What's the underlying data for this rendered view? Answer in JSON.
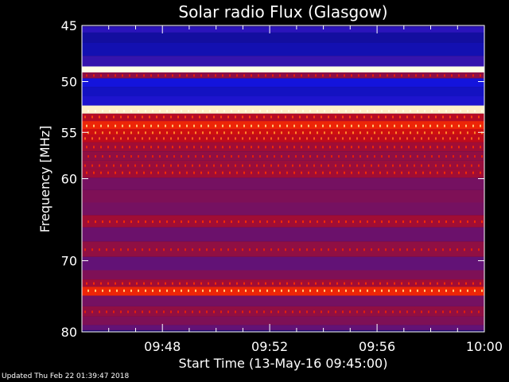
{
  "chart_data": {
    "type": "heatmap",
    "title": "Solar radio Flux (Glasgow)",
    "ylabel": "Frequency [MHz]",
    "xlabel": "Start Time (13-May-16 09:45:00)",
    "x_ticks": [
      "09:48",
      "09:52",
      "09:56",
      "10:00"
    ],
    "x_tick_minutes": [
      48,
      52,
      56,
      60
    ],
    "x_range_minutes": [
      45,
      60
    ],
    "y_ticks": [
      45,
      50,
      55,
      60,
      70,
      80
    ],
    "y_range_mhz": [
      45,
      80
    ],
    "y_scale": "log",
    "colormap": "blue-red-yellow-white",
    "bands": [
      {
        "freq": 45.2,
        "level": 0.22
      },
      {
        "freq": 46.0,
        "level": 0.08
      },
      {
        "freq": 47.0,
        "level": 0.1
      },
      {
        "freq": 48.3,
        "level": 0.25
      },
      {
        "freq": 48.9,
        "level": 1.0
      },
      {
        "freq": 49.4,
        "level": 0.45
      },
      {
        "freq": 50.0,
        "level": 0.15
      },
      {
        "freq": 51.0,
        "level": 0.12
      },
      {
        "freq": 51.8,
        "level": 0.18
      },
      {
        "freq": 52.8,
        "level": 0.98
      },
      {
        "freq": 53.4,
        "level": 0.55
      },
      {
        "freq": 54.3,
        "level": 0.7
      },
      {
        "freq": 55.0,
        "level": 0.62
      },
      {
        "freq": 55.6,
        "level": 0.58
      },
      {
        "freq": 56.5,
        "level": 0.5
      },
      {
        "freq": 57.5,
        "level": 0.46
      },
      {
        "freq": 58.5,
        "level": 0.48
      },
      {
        "freq": 59.3,
        "level": 0.5
      },
      {
        "freq": 60.5,
        "level": 0.4
      },
      {
        "freq": 62.0,
        "level": 0.42
      },
      {
        "freq": 63.5,
        "level": 0.4
      },
      {
        "freq": 65.0,
        "level": 0.5
      },
      {
        "freq": 66.5,
        "level": 0.38
      },
      {
        "freq": 68.5,
        "level": 0.46
      },
      {
        "freq": 70.5,
        "level": 0.36
      },
      {
        "freq": 72.0,
        "level": 0.42
      },
      {
        "freq": 73.0,
        "level": 0.5
      },
      {
        "freq": 74.0,
        "level": 0.7
      },
      {
        "freq": 75.5,
        "level": 0.4
      },
      {
        "freq": 77.0,
        "level": 0.46
      },
      {
        "freq": 78.5,
        "level": 0.42
      },
      {
        "freq": 79.5,
        "level": 0.36
      }
    ],
    "grid": false,
    "legend": "none"
  },
  "footer": {
    "updated": "Updated Thu Feb 22 01:39:47 2018"
  }
}
